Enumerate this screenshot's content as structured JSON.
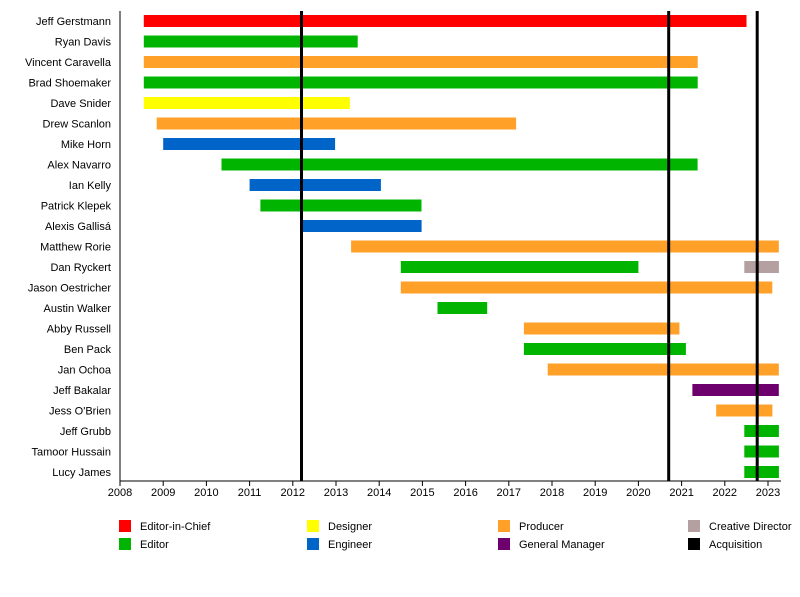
{
  "chart_data": {
    "type": "timeline",
    "x_axis": {
      "min": 2008,
      "max": 2023.3,
      "ticks": [
        "2008",
        "2009",
        "2010",
        "2011",
        "2012",
        "2013",
        "2014",
        "2015",
        "2016",
        "2017",
        "2018",
        "2019",
        "2020",
        "2021",
        "2022",
        "2023"
      ]
    },
    "grid": false,
    "legend_position": "bottom",
    "roles": {
      "editor_in_chief": {
        "label": "Editor-in-Chief",
        "color": "#ff0000"
      },
      "editor": {
        "label": "Editor",
        "color": "#00b400"
      },
      "designer": {
        "label": "Designer",
        "color": "#ffff00"
      },
      "engineer": {
        "label": "Engineer",
        "color": "#0064c8"
      },
      "producer": {
        "label": "Producer",
        "color": "#ffa028"
      },
      "general_manager": {
        "label": "General Manager",
        "color": "#6e006e"
      },
      "creative_director": {
        "label": "Creative Director",
        "color": "#b4a0a0"
      },
      "acquisition": {
        "label": "Acquisition",
        "color": "#000000"
      }
    },
    "legend_order": [
      "editor_in_chief",
      "designer",
      "producer",
      "creative_director",
      "editor",
      "engineer",
      "general_manager",
      "acquisition"
    ],
    "people": [
      {
        "name": "Jeff Gerstmann",
        "spans": [
          {
            "role": "editor_in_chief",
            "start": 2008.55,
            "end": 2022.5
          }
        ]
      },
      {
        "name": "Ryan Davis",
        "spans": [
          {
            "role": "editor",
            "start": 2008.55,
            "end": 2013.5
          }
        ]
      },
      {
        "name": "Vincent Caravella",
        "spans": [
          {
            "role": "producer",
            "start": 2008.55,
            "end": 2021.37
          }
        ]
      },
      {
        "name": "Brad Shoemaker",
        "spans": [
          {
            "role": "editor",
            "start": 2008.55,
            "end": 2021.37
          }
        ]
      },
      {
        "name": "Dave Snider",
        "spans": [
          {
            "role": "designer",
            "start": 2008.55,
            "end": 2013.32
          }
        ]
      },
      {
        "name": "Drew Scanlon",
        "spans": [
          {
            "role": "producer",
            "start": 2008.85,
            "end": 2017.17
          }
        ]
      },
      {
        "name": "Mike Horn",
        "spans": [
          {
            "role": "engineer",
            "start": 2009.0,
            "end": 2012.98
          }
        ]
      },
      {
        "name": "Alex Navarro",
        "spans": [
          {
            "role": "editor",
            "start": 2010.35,
            "end": 2021.37
          }
        ]
      },
      {
        "name": "Ian Kelly",
        "spans": [
          {
            "role": "engineer",
            "start": 2011.0,
            "end": 2014.04
          }
        ]
      },
      {
        "name": "Patrick Klepek",
        "spans": [
          {
            "role": "editor",
            "start": 2011.25,
            "end": 2014.98
          }
        ]
      },
      {
        "name": "Alexis Gallisá",
        "spans": [
          {
            "role": "engineer",
            "start": 2012.2,
            "end": 2014.98
          }
        ]
      },
      {
        "name": "Matthew Rorie",
        "spans": [
          {
            "role": "producer",
            "start": 2013.35,
            "end": 2023.25
          }
        ]
      },
      {
        "name": "Dan Ryckert",
        "spans": [
          {
            "role": "editor",
            "start": 2014.5,
            "end": 2020.0
          },
          {
            "role": "creative_director",
            "start": 2022.45,
            "end": 2023.25
          }
        ]
      },
      {
        "name": "Jason Oestricher",
        "spans": [
          {
            "role": "producer",
            "start": 2014.5,
            "end": 2023.1
          }
        ]
      },
      {
        "name": "Austin Walker",
        "spans": [
          {
            "role": "editor",
            "start": 2015.35,
            "end": 2016.5
          }
        ]
      },
      {
        "name": "Abby Russell",
        "spans": [
          {
            "role": "producer",
            "start": 2017.35,
            "end": 2020.95
          }
        ]
      },
      {
        "name": "Ben Pack",
        "spans": [
          {
            "role": "editor",
            "start": 2017.35,
            "end": 2021.1
          }
        ]
      },
      {
        "name": "Jan Ochoa",
        "spans": [
          {
            "role": "producer",
            "start": 2017.9,
            "end": 2023.25
          }
        ]
      },
      {
        "name": "Jeff Bakalar",
        "spans": [
          {
            "role": "general_manager",
            "start": 2021.25,
            "end": 2023.25
          }
        ]
      },
      {
        "name": "Jess O'Brien",
        "spans": [
          {
            "role": "producer",
            "start": 2021.8,
            "end": 2023.1
          }
        ]
      },
      {
        "name": "Jeff Grubb",
        "spans": [
          {
            "role": "editor",
            "start": 2022.45,
            "end": 2023.25
          }
        ]
      },
      {
        "name": "Tamoor Hussain",
        "spans": [
          {
            "role": "editor",
            "start": 2022.45,
            "end": 2023.25
          }
        ]
      },
      {
        "name": "Lucy James",
        "spans": [
          {
            "role": "editor",
            "start": 2022.45,
            "end": 2023.25
          }
        ]
      }
    ],
    "acquisitions": [
      2012.2,
      2020.7,
      2022.75
    ]
  }
}
